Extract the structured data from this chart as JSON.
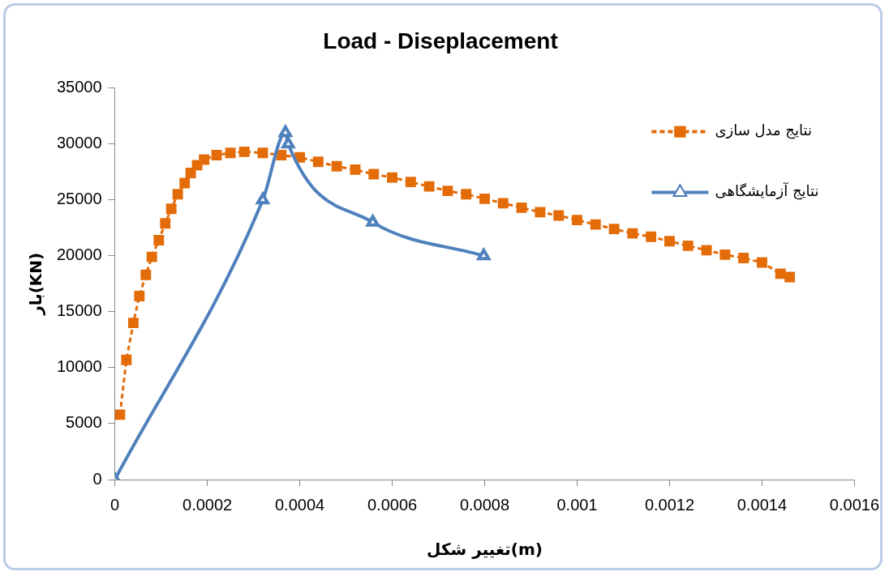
{
  "chart_data": {
    "type": "scatter",
    "title": "Load - Diseplacement",
    "xlabel": "تغییر شکل(m)",
    "ylabel": "بار(KN)",
    "xlim": [
      0,
      0.0016
    ],
    "xticks": [
      0,
      0.0002,
      0.0004,
      0.0006,
      0.0008,
      0.001,
      0.0012,
      0.0014,
      0.0016
    ],
    "ylim": [
      0,
      35000
    ],
    "yticks": [
      0,
      5000,
      10000,
      15000,
      20000,
      25000,
      30000,
      35000
    ],
    "grid": false,
    "legend": "top right",
    "series": [
      {
        "name": "نتایج مدل سازی",
        "type": "line",
        "color": "#e36c09",
        "marker": "square",
        "line_style": "dashed",
        "x": [
          1.1e-05,
          2.5e-05,
          4e-05,
          5.3e-05,
          6.7e-05,
          8e-05,
          9.5e-05,
          0.000109,
          0.000122,
          0.000136,
          0.000151,
          0.000164,
          0.000178,
          0.000193,
          0.00022,
          0.00025,
          0.00028,
          0.00032,
          0.00036,
          0.0004,
          0.00044,
          0.00048,
          0.00052,
          0.00056,
          0.0006,
          0.00064,
          0.00068,
          0.00072,
          0.00076,
          0.0008,
          0.00084,
          0.00088,
          0.00092,
          0.00096,
          0.001,
          0.00104,
          0.00108,
          0.00112,
          0.00116,
          0.0012,
          0.00124,
          0.00128,
          0.00132,
          0.00136,
          0.0014,
          0.00144,
          0.00146
        ],
        "values": [
          5800,
          10700,
          14000,
          16400,
          18300,
          19900,
          21400,
          22900,
          24200,
          25500,
          26500,
          27400,
          28100,
          28600,
          29000,
          29200,
          29300,
          29200,
          29000,
          28800,
          28400,
          28000,
          27700,
          27300,
          27000,
          26600,
          26200,
          25800,
          25500,
          25100,
          24700,
          24300,
          23900,
          23600,
          23200,
          22800,
          22400,
          22000,
          21700,
          21300,
          20900,
          20500,
          20100,
          19800,
          19400,
          18400,
          18100
        ]
      },
      {
        "name": "نتایج آزمایشگاهی",
        "type": "line",
        "color": "#4f81bd",
        "marker": "triangle",
        "x": [
          0,
          0.00032,
          0.000369,
          0.000375,
          0.000558,
          0.000798
        ],
        "values": [
          0,
          25000,
          31000,
          30000,
          23000,
          20000
        ]
      }
    ]
  }
}
